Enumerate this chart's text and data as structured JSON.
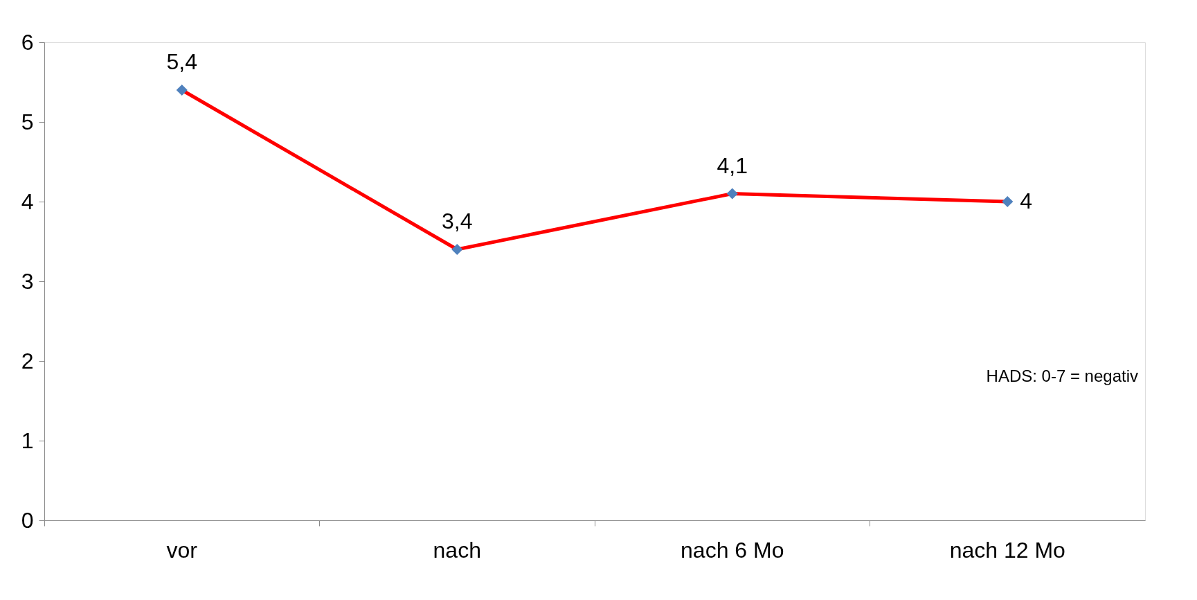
{
  "chart_data": {
    "type": "line",
    "categories": [
      "vor",
      "nach",
      "nach 6 Mo",
      "nach 12 Mo"
    ],
    "series": [
      {
        "color": "#ff0000",
        "values": [
          5.4,
          3.4,
          4.1,
          4
        ],
        "value_labels": [
          "5,4",
          "3,4",
          "4,1",
          "4"
        ]
      }
    ],
    "ylim": [
      0,
      6
    ],
    "yticks": [
      0,
      1,
      2,
      3,
      4,
      5,
      6
    ],
    "grid": false,
    "marker": "diamond",
    "line_style": "solid",
    "annotations": [
      "HADS: 0-7 = negativ"
    ]
  }
}
